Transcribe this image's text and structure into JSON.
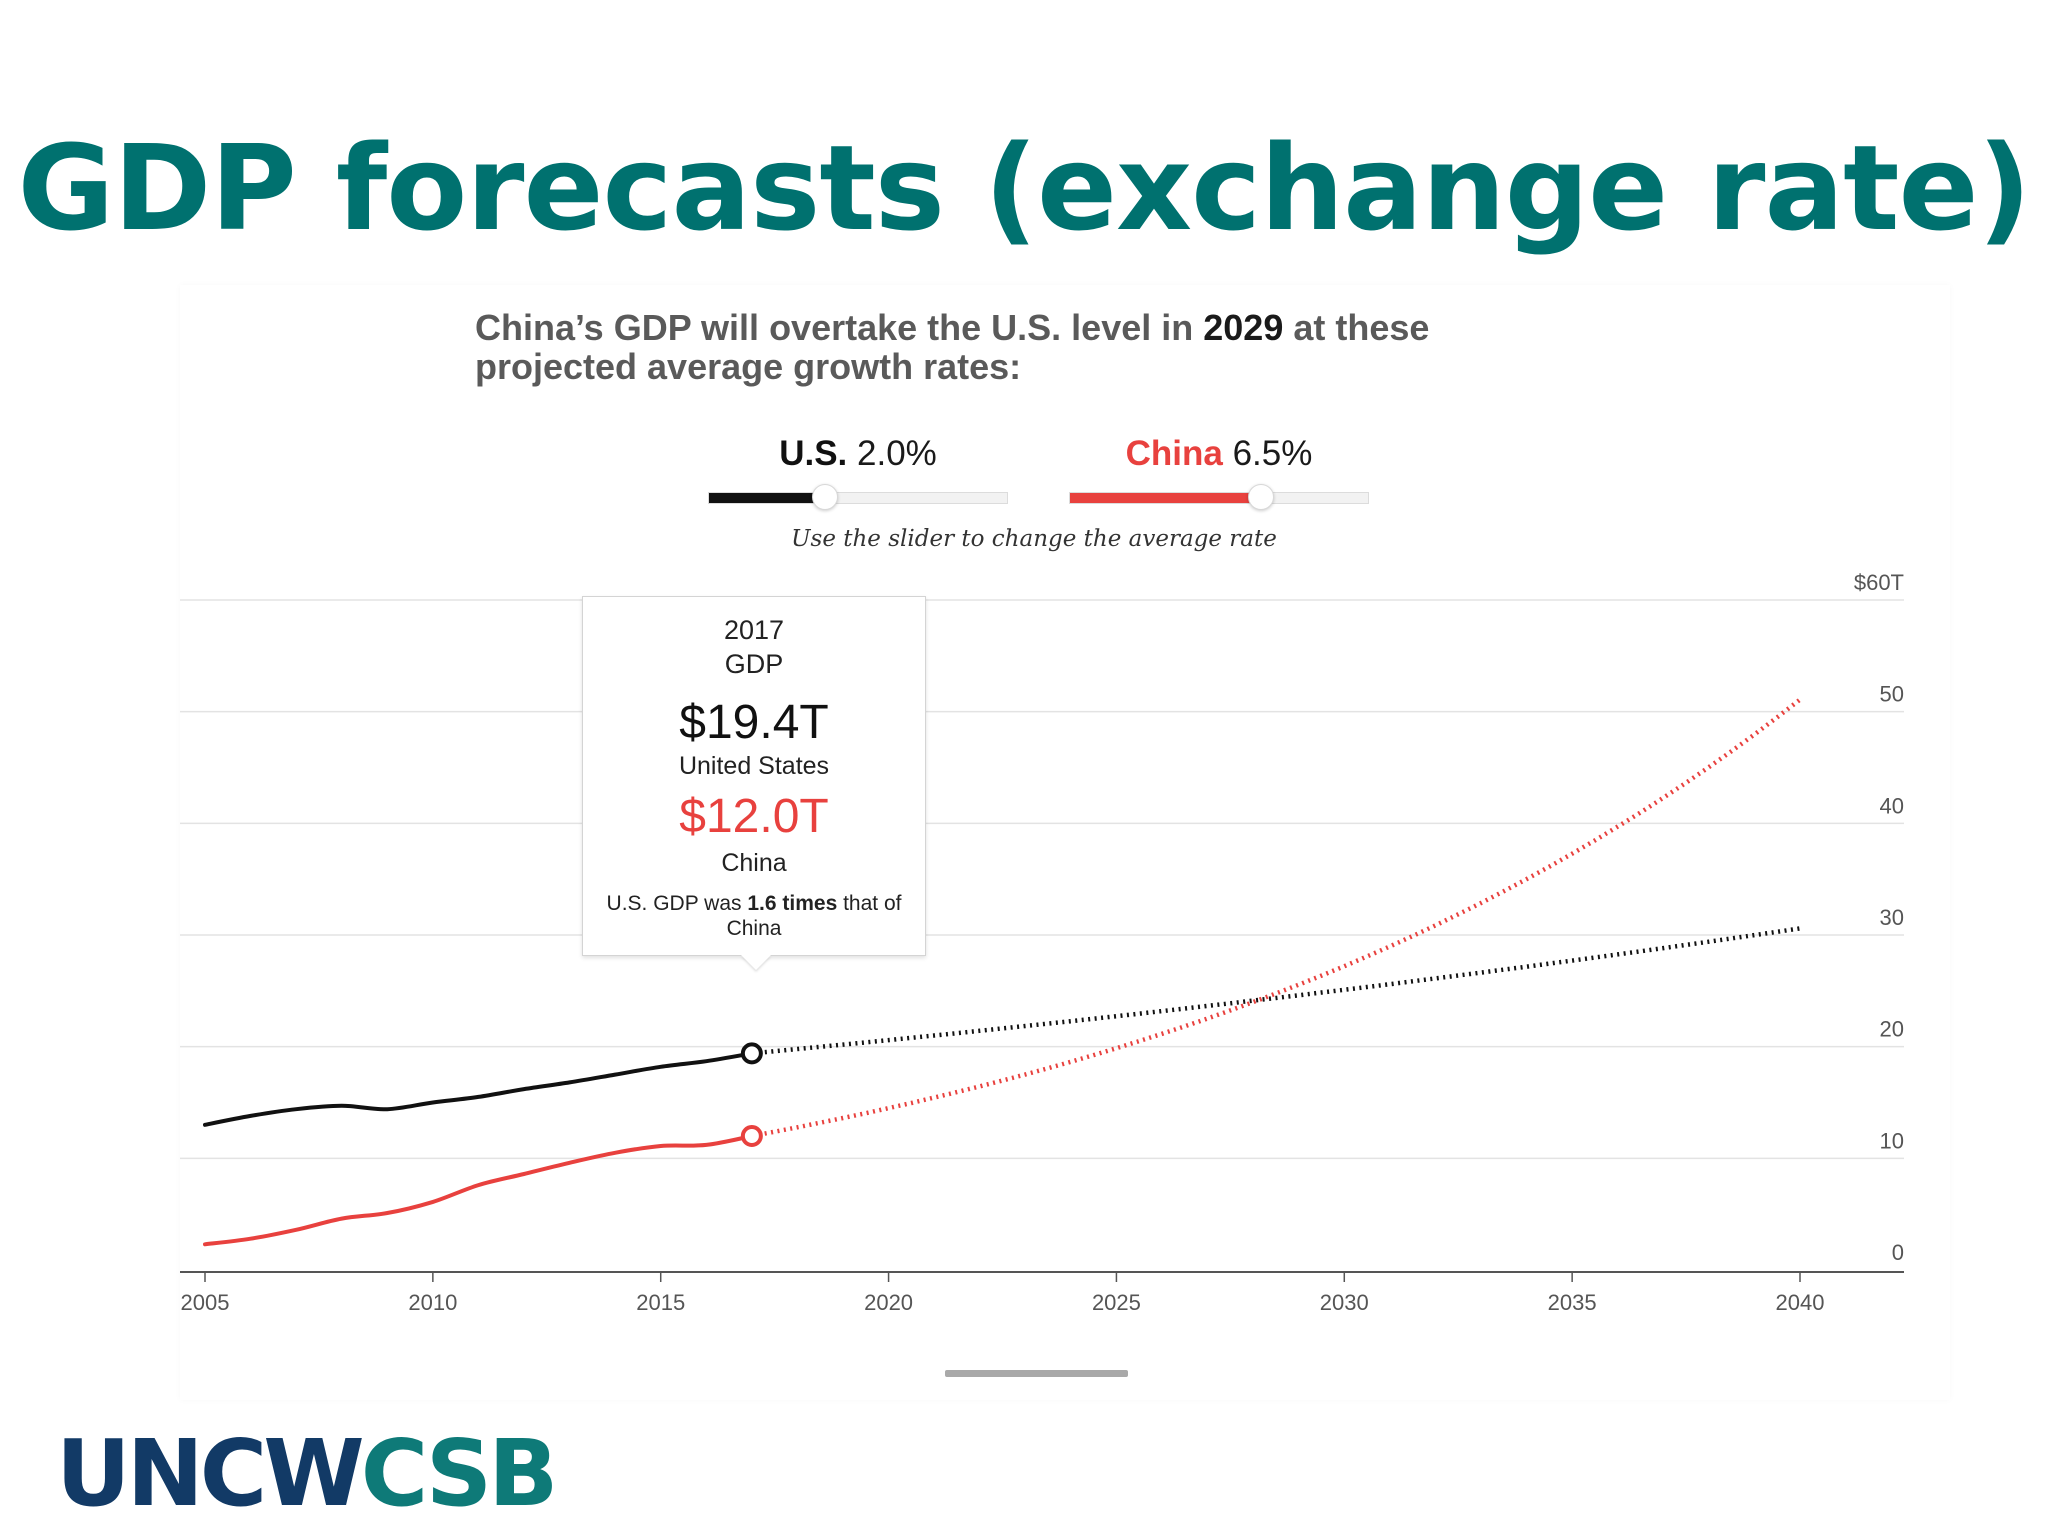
{
  "slide": {
    "title": "GDP forecasts (exchange rate)",
    "logo_part1": "UNCW",
    "logo_part2": "CSB"
  },
  "colors": {
    "title": "#00716f",
    "us": "#111111",
    "china": "#e8413e",
    "logo_navy": "#123a66",
    "logo_teal": "#0e7a78"
  },
  "headline": {
    "part1": "China’s GDP will overtake the U.S. level in ",
    "year": "2029",
    "part2": " at these projected average growth rates:"
  },
  "sliders": [
    {
      "name": "U.S.",
      "rate": "2.0%",
      "value": 0.39
    },
    {
      "name": "China",
      "rate": "6.5%",
      "value": 0.64
    }
  ],
  "slider_hint": "Use the slider to change the average rate",
  "tooltip": {
    "year": "2017",
    "measure": "GDP",
    "us_value": "$19.4T",
    "us_label": "United States",
    "china_value": "$12.0T",
    "china_label": "China",
    "note_pre": "U.S. GDP was ",
    "note_bold": "1.6 times",
    "note_post": " that of China"
  },
  "chart_data": {
    "type": "line",
    "xlim": [
      2005,
      2040
    ],
    "ylim": [
      0,
      60
    ],
    "x_ticks": [
      2005,
      2010,
      2015,
      2020,
      2025,
      2030,
      2035,
      2040
    ],
    "x_tick_labels": [
      "2005",
      "2010",
      "2015",
      "2020",
      "2025",
      "2030",
      "2035",
      "2040"
    ],
    "y_ticks": [
      0,
      10,
      20,
      30,
      40,
      50,
      60
    ],
    "y_tick_labels": [
      "0",
      "10",
      "20",
      "30",
      "40",
      "50",
      "$60T"
    ],
    "grid": true,
    "series": [
      {
        "name": "United States",
        "color": "#111111",
        "historical": {
          "x": [
            2005,
            2006,
            2007,
            2008,
            2009,
            2010,
            2011,
            2012,
            2013,
            2014,
            2015,
            2016,
            2017
          ],
          "y": [
            13.0,
            13.8,
            14.4,
            14.7,
            14.4,
            15.0,
            15.5,
            16.2,
            16.8,
            17.5,
            18.2,
            18.7,
            19.4
          ]
        },
        "projection": {
          "start_year": 2017,
          "start_value": 19.4,
          "end_year": 2040,
          "growth_rate": 0.02
        },
        "highlight": {
          "x": 2017,
          "y": 19.4
        }
      },
      {
        "name": "China",
        "color": "#e8413e",
        "historical": {
          "x": [
            2005,
            2006,
            2007,
            2008,
            2009,
            2010,
            2011,
            2012,
            2013,
            2014,
            2015,
            2016,
            2017
          ],
          "y": [
            2.3,
            2.8,
            3.6,
            4.6,
            5.1,
            6.1,
            7.6,
            8.6,
            9.6,
            10.5,
            11.1,
            11.2,
            12.0
          ]
        },
        "projection": {
          "start_year": 2017,
          "start_value": 12.0,
          "end_year": 2040,
          "growth_rate": 0.065
        },
        "highlight": {
          "x": 2017,
          "y": 12.0
        }
      }
    ]
  }
}
